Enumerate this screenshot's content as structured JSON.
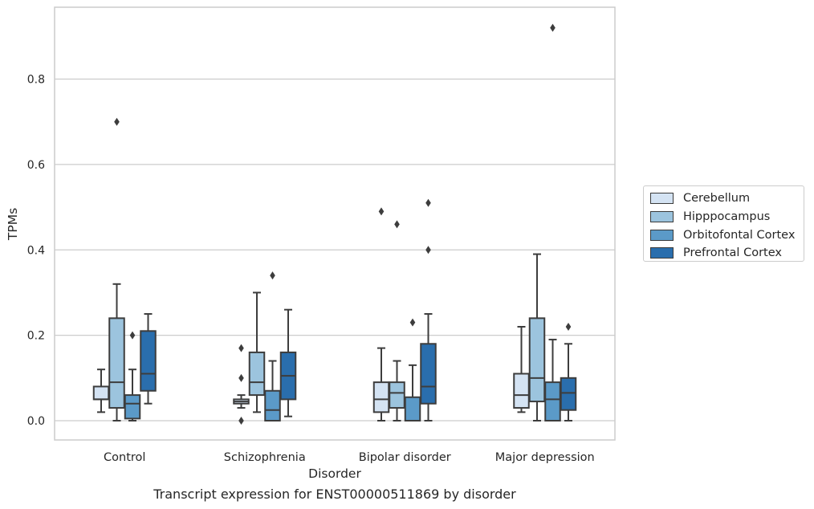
{
  "chart_data": {
    "type": "box",
    "xlabel": "Disorder",
    "ylabel": "TPMs",
    "ylim": [
      -0.045,
      0.97
    ],
    "yticks": [
      0.0,
      0.2,
      0.4,
      0.6,
      0.8
    ],
    "ytick_labels": [
      "0.0",
      "0.2",
      "0.4",
      "0.6",
      "0.8"
    ],
    "grid": "horizontal",
    "legend_position": "right",
    "categories": [
      "Control",
      "Schizophrenia",
      "Bipolar disorder",
      "Major depression"
    ],
    "series": [
      {
        "name": "Cerebellum",
        "color": "#d4e3f3",
        "boxes": [
          {
            "whislo": 0.02,
            "q1": 0.05,
            "med": 0.05,
            "q3": 0.08,
            "whishi": 0.12,
            "fliers": []
          },
          {
            "whislo": 0.03,
            "q1": 0.04,
            "med": 0.045,
            "q3": 0.05,
            "whishi": 0.06,
            "fliers": [
              0.17,
              0.1,
              0.0
            ]
          },
          {
            "whislo": 0.0,
            "q1": 0.02,
            "med": 0.05,
            "q3": 0.09,
            "whishi": 0.17,
            "fliers": [
              0.49
            ]
          },
          {
            "whislo": 0.02,
            "q1": 0.03,
            "med": 0.06,
            "q3": 0.11,
            "whishi": 0.22,
            "fliers": []
          }
        ]
      },
      {
        "name": "Hipppocampus",
        "color": "#9cc4de",
        "boxes": [
          {
            "whislo": 0.0,
            "q1": 0.03,
            "med": 0.09,
            "q3": 0.24,
            "whishi": 0.32,
            "fliers": [
              0.7
            ]
          },
          {
            "whislo": 0.02,
            "q1": 0.06,
            "med": 0.09,
            "q3": 0.16,
            "whishi": 0.3,
            "fliers": []
          },
          {
            "whislo": 0.0,
            "q1": 0.03,
            "med": 0.065,
            "q3": 0.09,
            "whishi": 0.14,
            "fliers": [
              0.46
            ]
          },
          {
            "whislo": 0.0,
            "q1": 0.045,
            "med": 0.1,
            "q3": 0.24,
            "whishi": 0.39,
            "fliers": []
          }
        ]
      },
      {
        "name": "Orbitofontal Cortex",
        "color": "#5b9ac8",
        "boxes": [
          {
            "whislo": 0.0,
            "q1": 0.005,
            "med": 0.04,
            "q3": 0.06,
            "whishi": 0.12,
            "fliers": [
              0.2
            ]
          },
          {
            "whislo": 0.0,
            "q1": 0.0,
            "med": 0.025,
            "q3": 0.07,
            "whishi": 0.14,
            "fliers": [
              0.34
            ]
          },
          {
            "whislo": 0.0,
            "q1": 0.0,
            "med": 0.0,
            "q3": 0.055,
            "whishi": 0.13,
            "fliers": [
              0.23
            ]
          },
          {
            "whislo": 0.0,
            "q1": 0.0,
            "med": 0.05,
            "q3": 0.09,
            "whishi": 0.19,
            "fliers": [
              0.92
            ]
          }
        ]
      },
      {
        "name": "Prefrontal Cortex",
        "color": "#2a6ead",
        "boxes": [
          {
            "whislo": 0.04,
            "q1": 0.07,
            "med": 0.11,
            "q3": 0.21,
            "whishi": 0.25,
            "fliers": []
          },
          {
            "whislo": 0.01,
            "q1": 0.05,
            "med": 0.105,
            "q3": 0.16,
            "whishi": 0.26,
            "fliers": []
          },
          {
            "whislo": 0.0,
            "q1": 0.04,
            "med": 0.08,
            "q3": 0.18,
            "whishi": 0.25,
            "fliers": [
              0.4,
              0.51
            ]
          },
          {
            "whislo": 0.0,
            "q1": 0.025,
            "med": 0.065,
            "q3": 0.1,
            "whishi": 0.18,
            "fliers": [
              0.22
            ]
          }
        ]
      }
    ]
  },
  "caption": "Transcript expression for ENST00000511869 by disorder"
}
